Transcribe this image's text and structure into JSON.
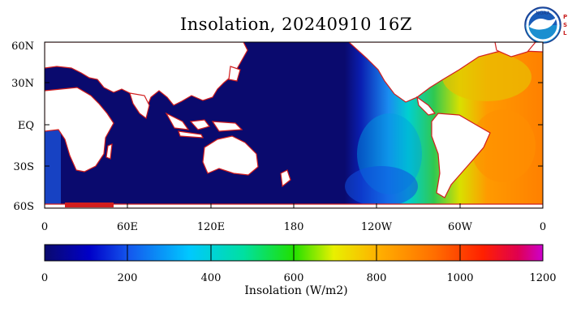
{
  "title": "Insolation, 20240910 16Z",
  "logo": {
    "label": "NOAA",
    "side_text": "PSL"
  },
  "map": {
    "lat_labels": [
      "60N",
      "30N",
      "EQ",
      "30S",
      "60S"
    ],
    "lon_labels": [
      "0",
      "60E",
      "120E",
      "180",
      "120W",
      "60W",
      "0"
    ]
  },
  "colorbar": {
    "ticks": [
      "0",
      "200",
      "400",
      "600",
      "800",
      "1000",
      "1200"
    ],
    "label": "Insolation (W/m2)",
    "range": [
      0,
      1200
    ],
    "colors": [
      "#0a0a6e",
      "#0000d0",
      "#1a6cf0",
      "#00e0ff",
      "#00d070",
      "#30e000",
      "#d8e800",
      "#ffb000",
      "#ff7000",
      "#ff2000",
      "#e00060",
      "#cc00cc"
    ]
  },
  "colors": {
    "night": "#0a0a6e",
    "land": "#ffffff",
    "coast": "#d21e1e"
  }
}
